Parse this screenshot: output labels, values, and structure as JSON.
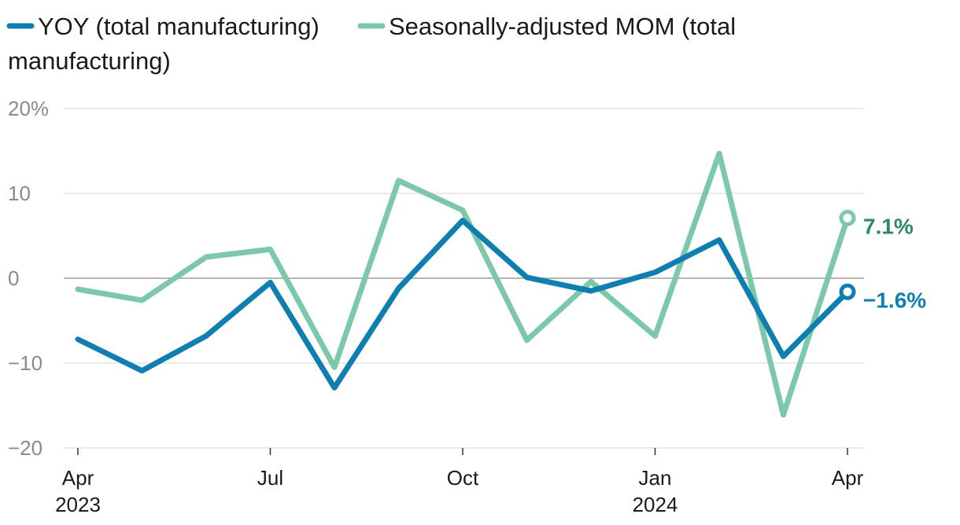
{
  "chart_data": {
    "type": "line",
    "title": "",
    "xlabel": "",
    "ylabel": "",
    "x": [
      "2023-04",
      "2023-05",
      "2023-06",
      "2023-07",
      "2023-08",
      "2023-09",
      "2023-10",
      "2023-11",
      "2023-12",
      "2024-01",
      "2024-02",
      "2024-03",
      "2024-04"
    ],
    "ylim": [
      -20,
      20
    ],
    "y_ticks": [
      {
        "value": 20,
        "label": "20%"
      },
      {
        "value": 10,
        "label": "10"
      },
      {
        "value": 0,
        "label": "0"
      },
      {
        "value": -10,
        "label": "−10"
      },
      {
        "value": -20,
        "label": "−20"
      }
    ],
    "x_ticks": [
      {
        "index": 0,
        "label": "Apr",
        "sublabel": "2023"
      },
      {
        "index": 3,
        "label": "Jul",
        "sublabel": ""
      },
      {
        "index": 6,
        "label": "Oct",
        "sublabel": ""
      },
      {
        "index": 9,
        "label": "Jan",
        "sublabel": "2024"
      },
      {
        "index": 12,
        "label": "Apr",
        "sublabel": ""
      }
    ],
    "legend": {
      "placement": "top-left",
      "line1_first": "YOY (total manufacturing)",
      "line1_second": "Seasonally-adjusted MOM (total",
      "line2": "manufacturing)"
    },
    "series": [
      {
        "key": "yoy",
        "name": "YOY (total manufacturing)",
        "color": "#0e7fb0",
        "values": [
          -7.2,
          -10.9,
          -6.8,
          -0.5,
          -12.9,
          -1.2,
          6.8,
          0.1,
          -1.5,
          0.7,
          4.5,
          -9.2,
          -1.6
        ],
        "end_label": "−1.6%"
      },
      {
        "key": "mom",
        "name": "Seasonally-adjusted MOM (total manufacturing)",
        "color": "#7cc8aa",
        "label_color": "#2f8a64",
        "values": [
          -1.3,
          -2.6,
          2.5,
          3.4,
          -10.5,
          11.5,
          8.0,
          -7.3,
          -0.4,
          -6.8,
          14.7,
          -16.1,
          7.1
        ],
        "end_label": "7.1%"
      }
    ]
  }
}
